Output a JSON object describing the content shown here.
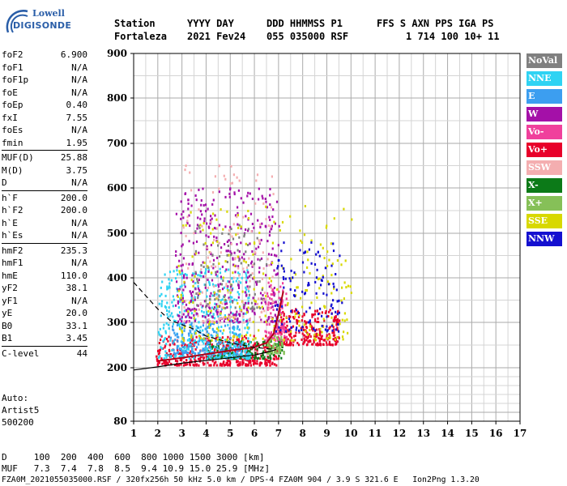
{
  "logo": {
    "line1": "Lowell",
    "line2": "DIGISONDE"
  },
  "header": {
    "row1": [
      "Station",
      "YYYY DAY",
      "DDD HHMMSS P1",
      "FFS S AXN PPS IGA PS"
    ],
    "row2": [
      "Fortaleza",
      "2021 Fev24",
      "055 035000 RSF",
      "1 714 100 10+ 11"
    ]
  },
  "params": [
    {
      "k": "foF2",
      "v": "6.900"
    },
    {
      "k": "foF1",
      "v": "N/A"
    },
    {
      "k": "foF1p",
      "v": "N/A"
    },
    {
      "k": "foE",
      "v": "N/A"
    },
    {
      "k": "foEp",
      "v": "0.40"
    },
    {
      "k": "fxI",
      "v": "7.55"
    },
    {
      "k": "foEs",
      "v": "N/A"
    },
    {
      "k": "fmin",
      "v": "1.95"
    },
    {
      "k": "MUF(D)",
      "v": "25.88",
      "sep": true
    },
    {
      "k": "M(D)",
      "v": "3.75"
    },
    {
      "k": "D",
      "v": "N/A"
    },
    {
      "k": "h`F",
      "v": "200.0",
      "sep": true
    },
    {
      "k": "h`F2",
      "v": "200.0"
    },
    {
      "k": "h`E",
      "v": "N/A"
    },
    {
      "k": "h`Es",
      "v": "N/A"
    },
    {
      "k": "hmF2",
      "v": "235.3",
      "sep": true
    },
    {
      "k": "hmF1",
      "v": "N/A"
    },
    {
      "k": "hmE",
      "v": "110.0"
    },
    {
      "k": "yF2",
      "v": "38.1"
    },
    {
      "k": "yF1",
      "v": "N/A"
    },
    {
      "k": "yE",
      "v": "20.0"
    },
    {
      "k": "B0",
      "v": "33.1"
    },
    {
      "k": "B1",
      "v": "3.45"
    },
    {
      "k": "C-level",
      "v": "44",
      "sep": true
    }
  ],
  "auto": [
    "Auto:",
    "Artist5",
    "500200"
  ],
  "legend": [
    {
      "label": "NoVal",
      "color": "#808080"
    },
    {
      "label": "NNE",
      "color": "#2fd3f3"
    },
    {
      "label": "E",
      "color": "#3c9ef0"
    },
    {
      "label": "W",
      "color": "#a410a8"
    },
    {
      "label": "Vo-",
      "color": "#f0409c"
    },
    {
      "label": "Vo+",
      "color": "#e8002a"
    },
    {
      "label": "SSW",
      "color": "#f4aeb0"
    },
    {
      "label": "X-",
      "color": "#0c7a18"
    },
    {
      "label": "X+",
      "color": "#86c058"
    },
    {
      "label": "SSE",
      "color": "#d8d800"
    },
    {
      "label": "NNW",
      "color": "#1410d0"
    }
  ],
  "bottom": {
    "line1": "D     100  200  400  600  800 1000 1500 3000 [km]",
    "line2": "MUF   7.3  7.4  7.8  8.5  9.4 10.9 15.0 25.9 [MHz]",
    "line3": "FZA0M_2021055035000.RSF / 320fx256h 50 kHz 5.0 km / DPS-4 FZA0M 904 / 3.9 S 321.6 E   Ion2Png 1.3.20"
  },
  "chart_data": {
    "type": "scatter",
    "title": "",
    "xlabel": "",
    "ylabel": "",
    "xlim": [
      1,
      17
    ],
    "ylim": [
      80,
      900
    ],
    "x_ticks": [
      1,
      2,
      3,
      4,
      5,
      6,
      7,
      8,
      9,
      10,
      11,
      12,
      13,
      14,
      15,
      16,
      17
    ],
    "y_ticks": [
      80,
      200,
      300,
      400,
      500,
      600,
      700,
      800,
      900
    ],
    "y_scale": "log-like",
    "grid": true,
    "legend_placement": "right",
    "echo_clusters": [
      {
        "name": "Vo+",
        "x": [
          1.9,
          7.0
        ],
        "y": [
          205,
          270
        ],
        "density": 420
      },
      {
        "name": "Vo+",
        "x": [
          7.0,
          9.5
        ],
        "y": [
          250,
          330
        ],
        "density": 260
      },
      {
        "name": "Vo-",
        "x": [
          6.4,
          7.3
        ],
        "y": [
          260,
          390
        ],
        "density": 120
      },
      {
        "name": "X-",
        "x": [
          4.0,
          7.2
        ],
        "y": [
          220,
          260
        ],
        "density": 140
      },
      {
        "name": "X+",
        "x": [
          6.5,
          7.2
        ],
        "y": [
          230,
          270
        ],
        "density": 60
      },
      {
        "name": "NNE",
        "x": [
          2.0,
          5.8
        ],
        "y": [
          220,
          420
        ],
        "density": 420
      },
      {
        "name": "E",
        "x": [
          2.5,
          5.5
        ],
        "y": [
          230,
          300
        ],
        "density": 160
      },
      {
        "name": "W",
        "x": [
          2.7,
          7.0
        ],
        "y": [
          300,
          600
        ],
        "density": 420
      },
      {
        "name": "SSE",
        "x": [
          2.8,
          10.0
        ],
        "y": [
          260,
          560
        ],
        "density": 260
      },
      {
        "name": "NNW",
        "x": [
          6.8,
          9.6
        ],
        "y": [
          280,
          480
        ],
        "density": 120
      },
      {
        "name": "SSW",
        "x": [
          3.0,
          6.8
        ],
        "y": [
          300,
          650
        ],
        "density": 140
      },
      {
        "name": "NoVal",
        "x": [
          3.5,
          6.5
        ],
        "y": [
          330,
          520
        ],
        "density": 80
      }
    ],
    "profile_solid": {
      "x": [
        1.0,
        2.0,
        3.0,
        4.0,
        5.0,
        6.0,
        6.5,
        6.9
      ],
      "y": [
        195,
        202,
        210,
        216,
        222,
        228,
        234,
        240
      ]
    },
    "profile_dashed": {
      "x": [
        1.0,
        1.5,
        2.0,
        2.5,
        3.0,
        3.5,
        4.0,
        5.0,
        6.0,
        6.9
      ],
      "y": [
        390,
        360,
        330,
        305,
        295,
        285,
        270,
        255,
        245,
        240
      ]
    },
    "trace_red": {
      "x": [
        2.0,
        3.0,
        4.0,
        5.0,
        6.0,
        6.5,
        6.8,
        7.0,
        7.2
      ],
      "y": [
        215,
        222,
        230,
        238,
        245,
        255,
        275,
        320,
        370
      ]
    }
  }
}
